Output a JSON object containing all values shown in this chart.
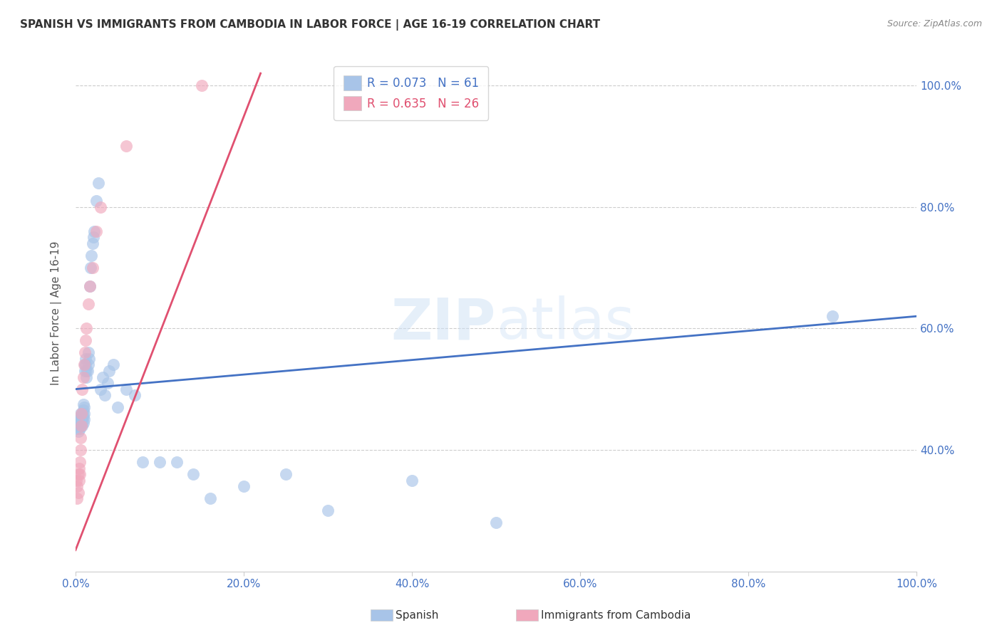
{
  "title": "SPANISH VS IMMIGRANTS FROM CAMBODIA IN LABOR FORCE | AGE 16-19 CORRELATION CHART",
  "source": "Source: ZipAtlas.com",
  "ylabel": "In Labor Force | Age 16-19",
  "xlim": [
    0.0,
    1.0
  ],
  "ylim": [
    0.2,
    1.05
  ],
  "xticks": [
    0.0,
    0.2,
    0.4,
    0.6,
    0.8,
    1.0
  ],
  "yticks": [
    0.4,
    0.6,
    0.8,
    1.0
  ],
  "xtick_labels": [
    "0.0%",
    "20.0%",
    "40.0%",
    "60.0%",
    "80.0%",
    "100.0%"
  ],
  "ytick_labels": [
    "40.0%",
    "60.0%",
    "80.0%",
    "100.0%"
  ],
  "watermark": "ZIPatlas",
  "spanish_color": "#a8c4e8",
  "cambodia_color": "#f0a8bc",
  "trend_spanish_color": "#4472c4",
  "trend_cambodia_color": "#e05070",
  "background_color": "#ffffff",
  "grid_color": "#cccccc",
  "spanish_x": [
    0.002,
    0.003,
    0.003,
    0.004,
    0.004,
    0.005,
    0.005,
    0.005,
    0.006,
    0.006,
    0.006,
    0.007,
    0.007,
    0.008,
    0.008,
    0.008,
    0.009,
    0.009,
    0.009,
    0.009,
    0.01,
    0.01,
    0.01,
    0.011,
    0.011,
    0.012,
    0.012,
    0.013,
    0.013,
    0.014,
    0.015,
    0.015,
    0.016,
    0.017,
    0.018,
    0.019,
    0.02,
    0.021,
    0.022,
    0.025,
    0.027,
    0.03,
    0.032,
    0.035,
    0.038,
    0.04,
    0.045,
    0.05,
    0.06,
    0.07,
    0.08,
    0.1,
    0.12,
    0.14,
    0.16,
    0.2,
    0.25,
    0.3,
    0.4,
    0.5,
    0.9
  ],
  "spanish_y": [
    0.435,
    0.445,
    0.43,
    0.44,
    0.45,
    0.435,
    0.445,
    0.455,
    0.44,
    0.45,
    0.46,
    0.445,
    0.455,
    0.44,
    0.45,
    0.46,
    0.445,
    0.455,
    0.465,
    0.475,
    0.45,
    0.46,
    0.47,
    0.53,
    0.54,
    0.54,
    0.55,
    0.52,
    0.53,
    0.53,
    0.56,
    0.54,
    0.55,
    0.67,
    0.7,
    0.72,
    0.74,
    0.75,
    0.76,
    0.81,
    0.84,
    0.5,
    0.52,
    0.49,
    0.51,
    0.53,
    0.54,
    0.47,
    0.5,
    0.49,
    0.38,
    0.38,
    0.38,
    0.36,
    0.32,
    0.34,
    0.36,
    0.3,
    0.35,
    0.28,
    0.62
  ],
  "cambodia_x": [
    0.001,
    0.002,
    0.002,
    0.003,
    0.003,
    0.004,
    0.004,
    0.005,
    0.005,
    0.006,
    0.006,
    0.007,
    0.007,
    0.008,
    0.009,
    0.01,
    0.011,
    0.012,
    0.013,
    0.015,
    0.017,
    0.02,
    0.025,
    0.03,
    0.06,
    0.15
  ],
  "cambodia_y": [
    0.35,
    0.32,
    0.34,
    0.33,
    0.36,
    0.35,
    0.37,
    0.36,
    0.38,
    0.4,
    0.42,
    0.44,
    0.46,
    0.5,
    0.52,
    0.54,
    0.56,
    0.58,
    0.6,
    0.64,
    0.67,
    0.7,
    0.76,
    0.8,
    0.9,
    1.0
  ],
  "trend_spanish_x0": 0.0,
  "trend_spanish_x1": 1.0,
  "trend_spanish_y0": 0.5,
  "trend_spanish_y1": 0.62,
  "trend_cambodia_x0": 0.0,
  "trend_cambodia_x1": 0.22,
  "trend_cambodia_y0": 0.235,
  "trend_cambodia_y1": 1.02
}
